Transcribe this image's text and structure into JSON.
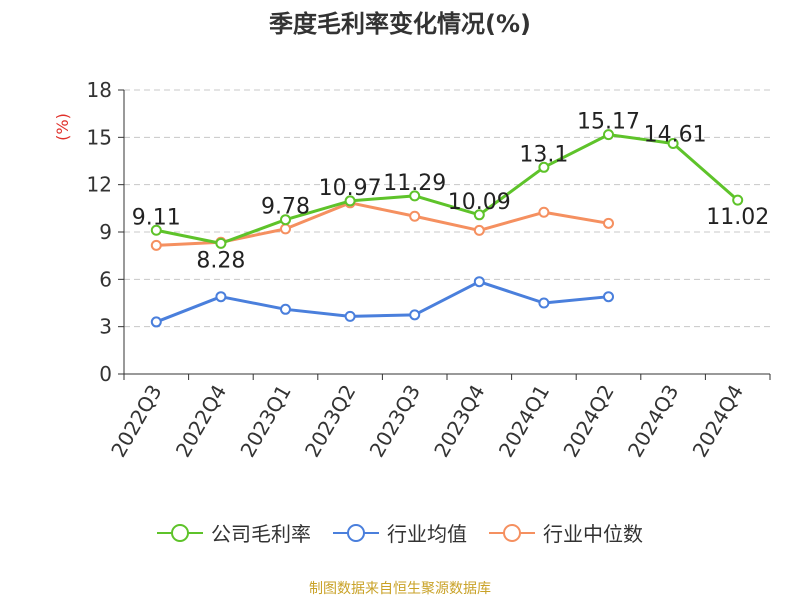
{
  "chart_data": {
    "type": "line",
    "title": "季度毛利率变化情况(%)",
    "ylabel": "(%)",
    "xlabel": "",
    "ylim": [
      0,
      18
    ],
    "yticks": [
      0,
      3,
      6,
      9,
      12,
      15,
      18
    ],
    "grid": true,
    "legend_position": "bottom",
    "categories": [
      "2022Q3",
      "2022Q4",
      "2023Q1",
      "2023Q2",
      "2023Q3",
      "2023Q4",
      "2024Q1",
      "2024Q2",
      "2024Q3",
      "2024Q4"
    ],
    "series": [
      {
        "name": "公司毛利率",
        "color": "#5ec32a",
        "values": [
          9.11,
          8.28,
          9.78,
          10.97,
          11.29,
          10.09,
          13.1,
          15.17,
          14.61,
          11.02
        ],
        "labels": [
          "9.11",
          "8.28",
          "9.78",
          "10.97",
          "11.29",
          "10.09",
          "13.1",
          "15.17",
          "14.61",
          "11.02"
        ]
      },
      {
        "name": "行业均值",
        "color": "#4a7fdc",
        "values": [
          3.3,
          4.9,
          4.1,
          3.65,
          3.75,
          5.85,
          4.5,
          4.9,
          null,
          null
        ]
      },
      {
        "name": "行业中位数",
        "color": "#f59060",
        "values": [
          8.15,
          8.35,
          9.2,
          10.85,
          10.0,
          9.1,
          10.25,
          9.55,
          null,
          null
        ]
      }
    ]
  },
  "source_text": "制图数据来自恒生聚源数据库"
}
